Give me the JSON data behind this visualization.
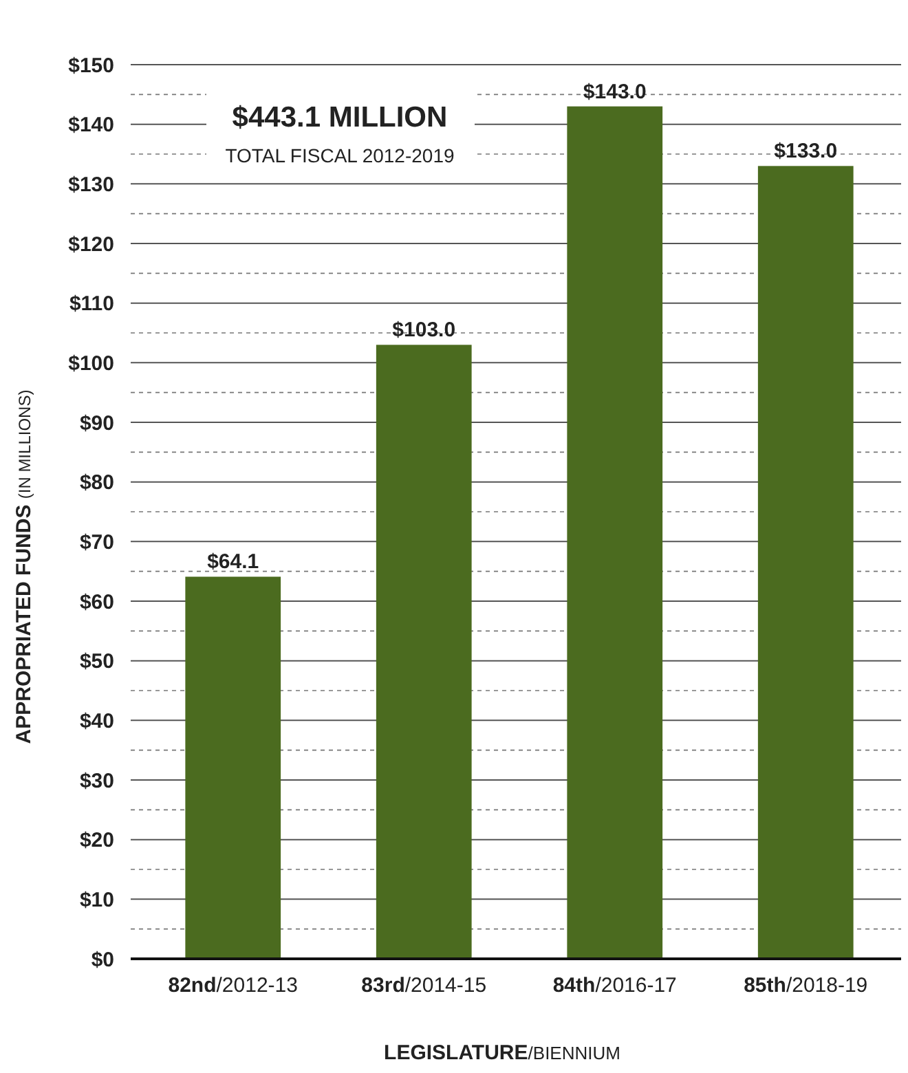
{
  "chart_data": {
    "type": "bar",
    "categories": [
      "82nd/2012-13",
      "83rd/2014-15",
      "84th/2016-17",
      "85th/2018-19"
    ],
    "values": [
      64.1,
      103.0,
      143.0,
      133.0
    ],
    "value_labels": [
      "$64.1",
      "$103.0",
      "$143.0",
      "$133.0"
    ],
    "color": "#4b6b1f",
    "xlabel": "LEGISLATURE/BIENNIUM",
    "ylabel": "APPROPRIATED FUNDS (IN MILLIONS)",
    "annotations": [
      "$443.1 MILLION",
      "TOTAL FISCAL 2012-2019"
    ],
    "ylim": [
      0,
      150
    ],
    "yticks": [
      {
        "value": 0,
        "label": "$0"
      },
      {
        "value": 5,
        "label": null
      },
      {
        "value": 10,
        "label": "$10"
      },
      {
        "value": 15,
        "label": null
      },
      {
        "value": 20,
        "label": "$20"
      },
      {
        "value": 25,
        "label": null
      },
      {
        "value": 30,
        "label": "$30"
      },
      {
        "value": 35,
        "label": null
      },
      {
        "value": 40,
        "label": "$40"
      },
      {
        "value": 45,
        "label": null
      },
      {
        "value": 50,
        "label": "$50"
      },
      {
        "value": 55,
        "label": null
      },
      {
        "value": 60,
        "label": "$60"
      },
      {
        "value": 65,
        "label": null
      },
      {
        "value": 70,
        "label": "$70"
      },
      {
        "value": 75,
        "label": null
      },
      {
        "value": 80,
        "label": "$80"
      },
      {
        "value": 85,
        "label": null
      },
      {
        "value": 90,
        "label": "$90"
      },
      {
        "value": 95,
        "label": null
      },
      {
        "value": 100,
        "label": "$100"
      },
      {
        "value": 105,
        "label": null
      },
      {
        "value": 110,
        "label": "$110"
      },
      {
        "value": 115,
        "label": null
      },
      {
        "value": 120,
        "label": "$120"
      },
      {
        "value": 125,
        "label": null
      },
      {
        "value": 130,
        "label": "$130"
      },
      {
        "value": 135,
        "label": null
      },
      {
        "value": 140,
        "label": "$140"
      },
      {
        "value": 145,
        "label": null
      },
      {
        "value": 150,
        "label": "$150"
      }
    ],
    "grid": "y"
  }
}
